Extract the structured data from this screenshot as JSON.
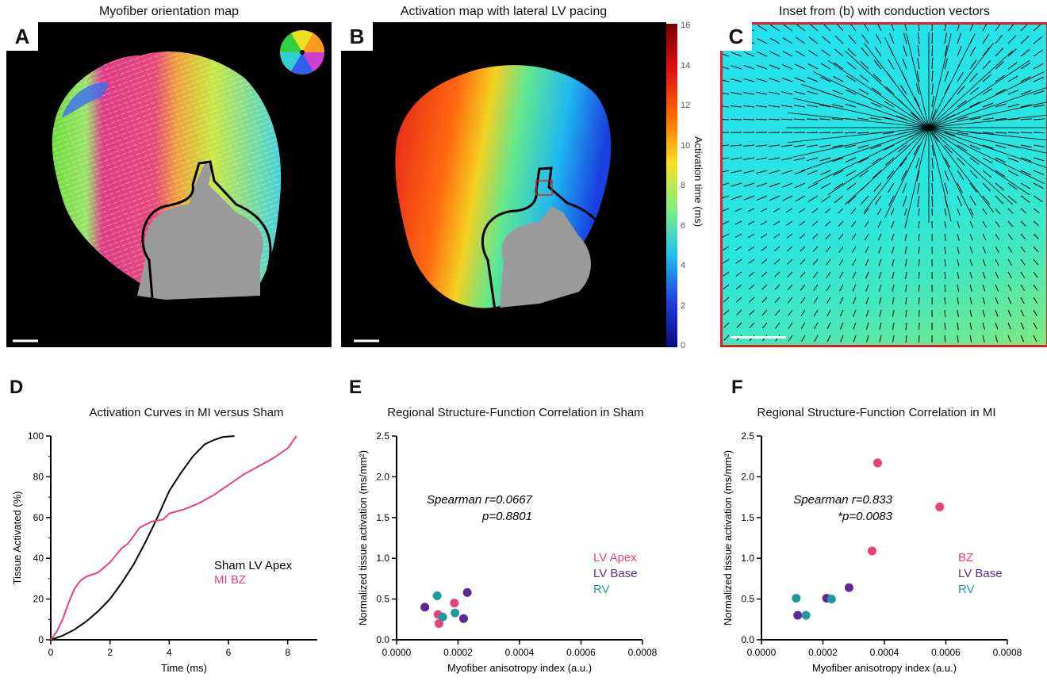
{
  "panels": {
    "A": {
      "label": "A",
      "title": "Myofiber orientation map"
    },
    "B": {
      "label": "B",
      "title": "Activation map with lateral LV pacing"
    },
    "C": {
      "label": "C",
      "title": "Inset from (b) with conduction vectors"
    },
    "D": {
      "label": "D"
    },
    "E": {
      "label": "E"
    },
    "F": {
      "label": "F"
    }
  },
  "colorbar": {
    "label": "Activation time (ms)",
    "ticks": [
      "16",
      "14",
      "12",
      "10",
      "8",
      "6",
      "4",
      "2",
      "0"
    ]
  },
  "chart_data": [
    {
      "id": "D",
      "type": "line",
      "title": "Activation Curves in MI versus Sham",
      "xlabel": "Time (ms)",
      "ylabel": "Tissue Activated (%)",
      "xlim": [
        0,
        9
      ],
      "ylim": [
        0,
        100
      ],
      "xticks": [
        "0",
        "2",
        "4",
        "6",
        "8"
      ],
      "yticks": [
        "0",
        "20",
        "40",
        "60",
        "80",
        "100"
      ],
      "series": [
        {
          "name": "Sham LV Apex",
          "color": "#000000",
          "x": [
            0,
            0.4,
            0.8,
            1.2,
            1.6,
            2.0,
            2.4,
            2.8,
            3.2,
            3.6,
            4.0,
            4.4,
            4.8,
            5.2,
            5.5,
            5.8,
            6.2
          ],
          "y": [
            0,
            2,
            5,
            9,
            14,
            20,
            28,
            37,
            48,
            60,
            73,
            82,
            90,
            96,
            98,
            99.5,
            100
          ]
        },
        {
          "name": "MI BZ",
          "color": "#e8427a",
          "x": [
            0,
            0.2,
            0.4,
            0.6,
            0.8,
            1.0,
            1.2,
            1.6,
            2.0,
            2.4,
            2.6,
            3.0,
            3.4,
            3.8,
            4.0,
            4.5,
            5.0,
            5.5,
            6.0,
            6.5,
            7.0,
            7.5,
            8.0,
            8.3
          ],
          "y": [
            0,
            4,
            10,
            18,
            25,
            29,
            31,
            33,
            38,
            45,
            47,
            55,
            58,
            59,
            62,
            64,
            67,
            71,
            76,
            81,
            85,
            89,
            94,
            100
          ]
        }
      ]
    },
    {
      "id": "E",
      "type": "scatter",
      "title": "Regional Structure-Function Correlation in Sham",
      "xlabel": "Myofiber anisotropy index (a.u.)",
      "ylabel": "Normalized tissue activation (ms/mm²)",
      "xlim": [
        0,
        0.0008
      ],
      "ylim": [
        0,
        2.5
      ],
      "xticks": [
        "0.0000",
        "0.0002",
        "0.0004",
        "0.0006",
        "0.0008"
      ],
      "yticks": [
        "0.0",
        "0.5",
        "1.0",
        "1.5",
        "2.0",
        "2.5"
      ],
      "annotation": [
        "Spearman r=0.0667",
        "p=0.8801"
      ],
      "series": [
        {
          "name": "LV Apex",
          "color": "#e8427a",
          "x": [
            0.000135,
            0.000138,
            0.000188
          ],
          "y": [
            0.31,
            0.2,
            0.45
          ]
        },
        {
          "name": "LV Base",
          "color": "#5b2a96",
          "x": [
            9.2e-05,
            0.000218,
            0.00023
          ],
          "y": [
            0.4,
            0.26,
            0.58
          ]
        },
        {
          "name": "RV",
          "color": "#1f9a9a",
          "x": [
            0.000132,
            0.00015,
            0.00019
          ],
          "y": [
            0.54,
            0.28,
            0.33
          ]
        }
      ]
    },
    {
      "id": "F",
      "type": "scatter",
      "title": "Regional Structure-Function Correlation in MI",
      "xlabel": "Myofiber anisotropy index (a.u.)",
      "ylabel": "Normalized tissue activation (ms/mm²)",
      "xlim": [
        0,
        0.0008
      ],
      "ylim": [
        0,
        2.5
      ],
      "xticks": [
        "0.0000",
        "0.0002",
        "0.0004",
        "0.0006",
        "0.0008"
      ],
      "yticks": [
        "0.0",
        "0.5",
        "1.0",
        "1.5",
        "2.0",
        "2.5"
      ],
      "annotation": [
        "Spearman r=0.833",
        "*p=0.0083"
      ],
      "series": [
        {
          "name": "BZ",
          "color": "#e8427a",
          "x": [
            0.00036,
            0.000378,
            0.00058
          ],
          "y": [
            1.09,
            2.17,
            1.63
          ]
        },
        {
          "name": "LV Base",
          "color": "#5b2a96",
          "x": [
            0.000118,
            0.000212,
            0.000285
          ],
          "y": [
            0.3,
            0.51,
            0.64
          ]
        },
        {
          "name": "RV",
          "color": "#1f9a9a",
          "x": [
            0.000113,
            0.000145,
            0.000228
          ],
          "y": [
            0.51,
            0.3,
            0.5
          ]
        }
      ]
    }
  ]
}
